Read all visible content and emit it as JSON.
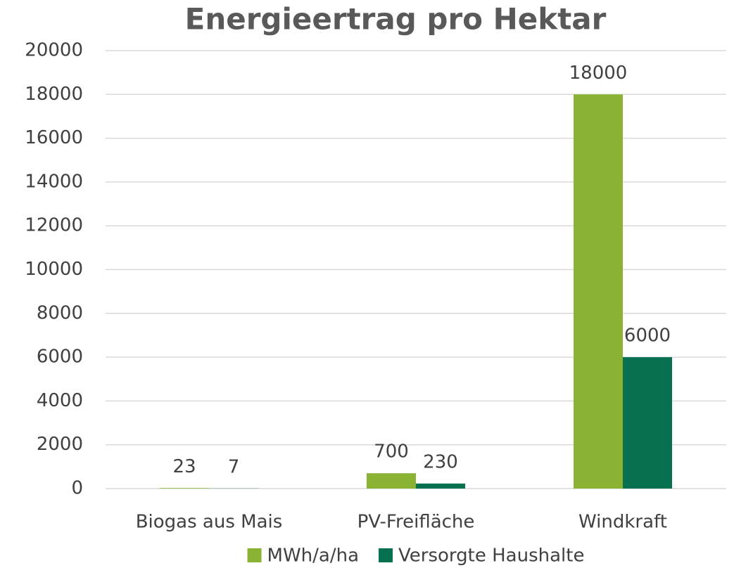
{
  "chart_data": {
    "type": "bar",
    "title": "Energieertrag pro Hektar",
    "categories": [
      "Biogas aus Mais",
      "PV-Freifläche",
      "Windkraft"
    ],
    "series": [
      {
        "name": "MWh/a/ha",
        "color": "#8ab333",
        "values": [
          23,
          700,
          18000
        ]
      },
      {
        "name": "Versorgte Haushalte",
        "color": "#067050",
        "values": [
          7,
          230,
          6000
        ]
      }
    ],
    "ylim": [
      0,
      20000
    ],
    "yticks": [
      0,
      2000,
      4000,
      6000,
      8000,
      10000,
      12000,
      14000,
      16000,
      18000,
      20000
    ],
    "grid": true,
    "legend": "bottom"
  }
}
